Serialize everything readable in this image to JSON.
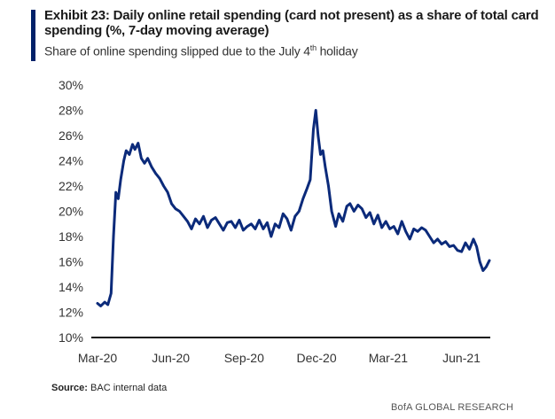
{
  "header": {
    "title": "Exhibit 23: Daily online retail spending (card not present) as a share of total card spending (%, 7-day moving average)",
    "subtitle_main": "Share of online spending slipped due to the July 4",
    "subtitle_sup": "th",
    "subtitle_end": " holiday"
  },
  "footer": {
    "source_label": "Source:",
    "source_text": "BAC internal data",
    "brand": "BofA GLOBAL RESEARCH"
  },
  "colors": {
    "accent": "#012169",
    "line": "#0b2a7a",
    "axis": "#111111"
  },
  "chart_data": {
    "type": "line",
    "title": "Exhibit 23: Daily online retail spending (card not present) as a share of total card spending (%, 7-day moving average)",
    "ylabel": "",
    "xlabel": "",
    "ylim": [
      10,
      30
    ],
    "y_ticks": [
      "10%",
      "12%",
      "14%",
      "16%",
      "18%",
      "20%",
      "22%",
      "24%",
      "26%",
      "28%",
      "30%"
    ],
    "x_ticks": [
      "Mar-20",
      "Jun-20",
      "Sep-20",
      "Dec-20",
      "Mar-21",
      "Jun-21"
    ],
    "grid": false,
    "series": [
      {
        "values_note_x_is_month_index_from_Mar-20": false,
        "points": [
          [
            "2020-03-01",
            12.7
          ],
          [
            "2020-03-05",
            12.5
          ],
          [
            "2020-03-10",
            12.8
          ],
          [
            "2020-03-14",
            12.6
          ],
          [
            "2020-03-18",
            13.5
          ],
          [
            "2020-03-21",
            18.0
          ],
          [
            "2020-03-24",
            21.5
          ],
          [
            "2020-03-27",
            21.0
          ],
          [
            "2020-03-30",
            22.5
          ],
          [
            "2020-04-03",
            24.0
          ],
          [
            "2020-04-06",
            24.8
          ],
          [
            "2020-04-10",
            24.5
          ],
          [
            "2020-04-14",
            25.3
          ],
          [
            "2020-04-17",
            24.9
          ],
          [
            "2020-04-21",
            25.4
          ],
          [
            "2020-04-25",
            24.2
          ],
          [
            "2020-04-29",
            23.8
          ],
          [
            "2020-05-03",
            24.2
          ],
          [
            "2020-05-08",
            23.5
          ],
          [
            "2020-05-13",
            23.0
          ],
          [
            "2020-05-18",
            22.6
          ],
          [
            "2020-05-23",
            22.0
          ],
          [
            "2020-05-28",
            21.5
          ],
          [
            "2020-06-02",
            20.6
          ],
          [
            "2020-06-07",
            20.2
          ],
          [
            "2020-06-12",
            20.0
          ],
          [
            "2020-06-17",
            19.6
          ],
          [
            "2020-06-22",
            19.2
          ],
          [
            "2020-06-27",
            18.6
          ],
          [
            "2020-07-02",
            19.4
          ],
          [
            "2020-07-07",
            19.0
          ],
          [
            "2020-07-12",
            19.6
          ],
          [
            "2020-07-17",
            18.7
          ],
          [
            "2020-07-22",
            19.3
          ],
          [
            "2020-07-27",
            19.5
          ],
          [
            "2020-08-01",
            19.0
          ],
          [
            "2020-08-06",
            18.5
          ],
          [
            "2020-08-11",
            19.1
          ],
          [
            "2020-08-16",
            19.2
          ],
          [
            "2020-08-21",
            18.7
          ],
          [
            "2020-08-26",
            19.3
          ],
          [
            "2020-08-31",
            18.5
          ],
          [
            "2020-09-05",
            18.8
          ],
          [
            "2020-09-10",
            19.0
          ],
          [
            "2020-09-15",
            18.6
          ],
          [
            "2020-09-20",
            19.3
          ],
          [
            "2020-09-25",
            18.6
          ],
          [
            "2020-09-30",
            19.1
          ],
          [
            "2020-10-05",
            18.0
          ],
          [
            "2020-10-10",
            19.0
          ],
          [
            "2020-10-15",
            18.7
          ],
          [
            "2020-10-20",
            19.8
          ],
          [
            "2020-10-25",
            19.4
          ],
          [
            "2020-10-30",
            18.5
          ],
          [
            "2020-11-04",
            19.6
          ],
          [
            "2020-11-09",
            20.0
          ],
          [
            "2020-11-14",
            21.0
          ],
          [
            "2020-11-19",
            21.8
          ],
          [
            "2020-11-23",
            22.5
          ],
          [
            "2020-11-27",
            26.5
          ],
          [
            "2020-11-30",
            28.0
          ],
          [
            "2020-12-03",
            26.0
          ],
          [
            "2020-12-06",
            24.5
          ],
          [
            "2020-12-09",
            24.8
          ],
          [
            "2020-12-12",
            23.5
          ],
          [
            "2020-12-16",
            22.0
          ],
          [
            "2020-12-20",
            20.0
          ],
          [
            "2020-12-25",
            18.8
          ],
          [
            "2020-12-29",
            19.8
          ],
          [
            "2021-01-03",
            19.2
          ],
          [
            "2021-01-08",
            20.4
          ],
          [
            "2021-01-12",
            20.6
          ],
          [
            "2021-01-17",
            20.0
          ],
          [
            "2021-01-22",
            20.5
          ],
          [
            "2021-01-27",
            20.2
          ],
          [
            "2021-02-01",
            19.5
          ],
          [
            "2021-02-06",
            19.9
          ],
          [
            "2021-02-11",
            19.0
          ],
          [
            "2021-02-16",
            19.7
          ],
          [
            "2021-02-21",
            18.7
          ],
          [
            "2021-02-26",
            19.2
          ],
          [
            "2021-03-03",
            18.6
          ],
          [
            "2021-03-08",
            18.8
          ],
          [
            "2021-03-13",
            18.2
          ],
          [
            "2021-03-18",
            19.2
          ],
          [
            "2021-03-23",
            18.4
          ],
          [
            "2021-03-28",
            17.8
          ],
          [
            "2021-04-02",
            18.6
          ],
          [
            "2021-04-07",
            18.4
          ],
          [
            "2021-04-12",
            18.7
          ],
          [
            "2021-04-17",
            18.5
          ],
          [
            "2021-04-22",
            18.0
          ],
          [
            "2021-04-27",
            17.5
          ],
          [
            "2021-05-02",
            17.8
          ],
          [
            "2021-05-07",
            17.4
          ],
          [
            "2021-05-12",
            17.6
          ],
          [
            "2021-05-17",
            17.2
          ],
          [
            "2021-05-22",
            17.3
          ],
          [
            "2021-05-27",
            16.9
          ],
          [
            "2021-06-01",
            16.8
          ],
          [
            "2021-06-06",
            17.5
          ],
          [
            "2021-06-11",
            17.0
          ],
          [
            "2021-06-16",
            17.8
          ],
          [
            "2021-06-20",
            17.2
          ],
          [
            "2021-06-24",
            16.0
          ],
          [
            "2021-06-28",
            15.3
          ],
          [
            "2021-07-02",
            15.6
          ],
          [
            "2021-07-06",
            16.1
          ]
        ]
      }
    ]
  }
}
